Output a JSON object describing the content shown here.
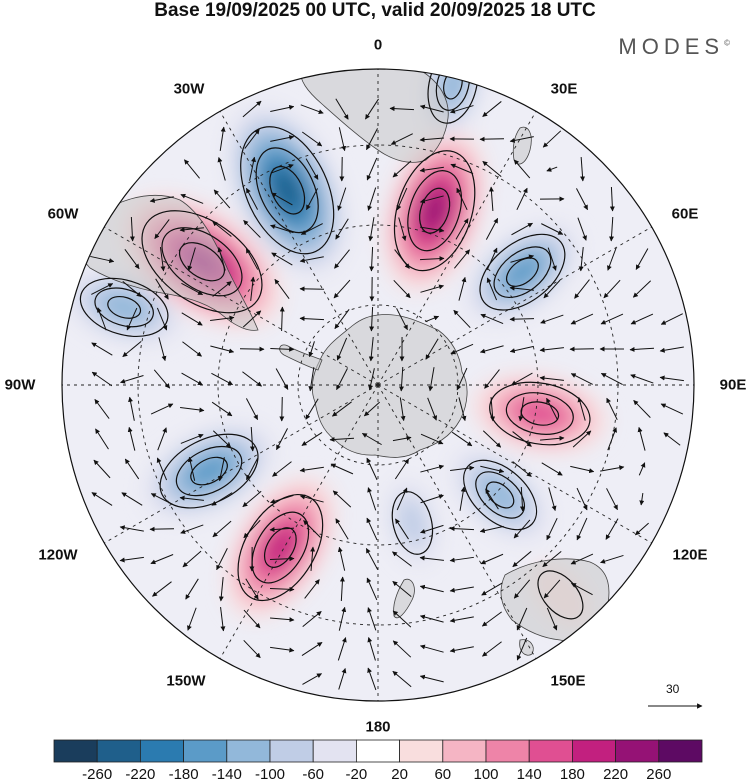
{
  "title": "Base 19/09/2025 00 UTC, valid 20/09/2025 18 UTC",
  "brand": "MODES",
  "brand_mark": "©",
  "longitude_labels": {
    "lon_0": "0",
    "lon_30e": "30E",
    "lon_60e": "60E",
    "lon_90e": "90E",
    "lon_120e": "120E",
    "lon_150e": "150E",
    "lon_180": "180",
    "lon_150w": "150W",
    "lon_120w": "120W",
    "lon_90w": "90W",
    "lon_60w": "60W",
    "lon_30w": "30W"
  },
  "reference_vector": "30",
  "colorbar": {
    "ticks": [
      "-260",
      "-220",
      "-180",
      "-140",
      "-100",
      "-60",
      "-20",
      "20",
      "60",
      "100",
      "140",
      "180",
      "220",
      "260"
    ],
    "colors": [
      "#1a3d5c",
      "#1f5f8b",
      "#2b7bb0",
      "#5b9bc8",
      "#92b8da",
      "#c0cde6",
      "#e3e3f1",
      "#ffffff",
      "#f9dede",
      "#f5b5c4",
      "#ee84a8",
      "#e04f92",
      "#c2207f",
      "#951275",
      "#5d0a63"
    ]
  },
  "anomalies": [
    {
      "name": "neg-anomaly-south-atlantic",
      "lon": -25,
      "r": 0.68,
      "value": -250
    },
    {
      "name": "pos-anomaly-sw-indian",
      "lon": 18,
      "r": 0.58,
      "value": 220
    },
    {
      "name": "neg-anomaly-indian-1",
      "lon": 52,
      "r": 0.58,
      "value": -150
    },
    {
      "name": "neg-anomaly-top-atlantic",
      "lon": 14,
      "r": 0.98,
      "value": -100
    },
    {
      "name": "pos-anomaly-indian-east",
      "lon": 100,
      "r": 0.52,
      "value": 160
    },
    {
      "name": "neg-anomaly-se-indian",
      "lon": 132,
      "r": 0.52,
      "value": -120
    },
    {
      "name": "pos-anomaly-australia",
      "lon": 139,
      "r": 0.88,
      "value": 40
    },
    {
      "name": "neg-anomaly-south-pacific",
      "lon": 166,
      "r": 0.45,
      "value": -60
    },
    {
      "name": "pos-anomaly-pacific",
      "lon": -149,
      "r": 0.6,
      "value": 200
    },
    {
      "name": "neg-anomaly-pacific-west",
      "lon": -117,
      "r": 0.6,
      "value": -170
    },
    {
      "name": "neg-anomaly-far-pacific",
      "lon": -73,
      "r": 0.84,
      "value": -130
    },
    {
      "name": "pos-anomaly-south-america",
      "lon": -55,
      "r": 0.68,
      "value": 250
    }
  ]
}
